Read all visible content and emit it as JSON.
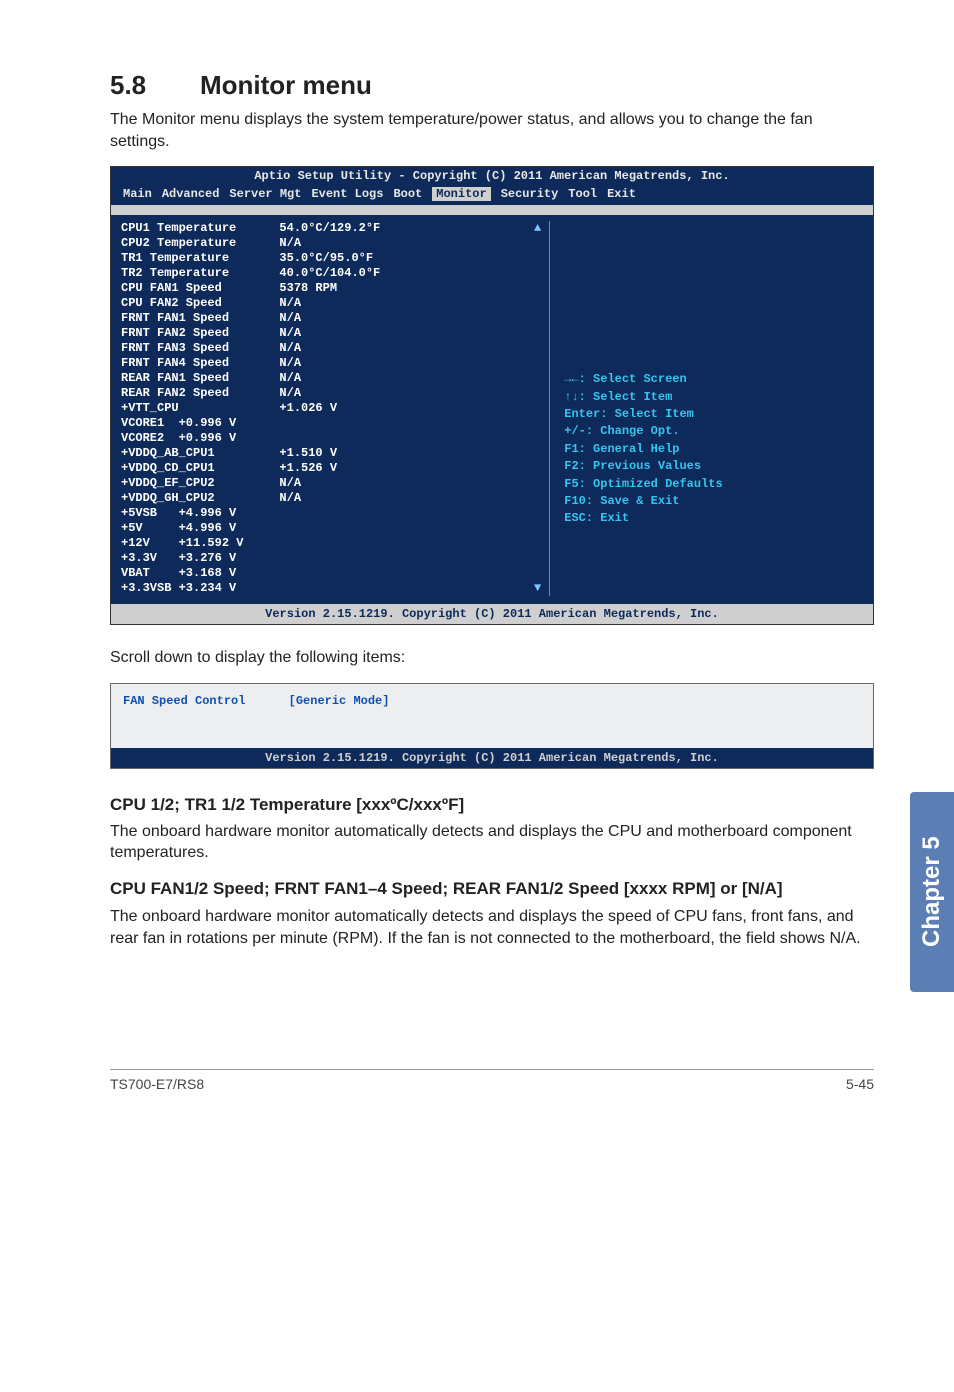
{
  "section": {
    "number": "5.8",
    "title": "Monitor menu"
  },
  "intro": "The Monitor menu displays the system temperature/power status, and allows you to change the fan settings.",
  "bios": {
    "title": "Aptio Setup Utility - Copyright (C) 2011 American Megatrends, Inc.",
    "menu": [
      "Main",
      "Advanced",
      "Server Mgt",
      "Event Logs",
      "Boot",
      "Monitor",
      "Security",
      "Tool",
      "Exit"
    ],
    "menu_selected": "Monitor",
    "left_rows": [
      [
        "CPU1 Temperature",
        "54.0°C/129.2°F"
      ],
      [
        "CPU2 Temperature",
        "N/A"
      ],
      [
        "TR1 Temperature",
        "35.0°C/95.0°F"
      ],
      [
        "TR2 Temperature",
        "40.0°C/104.0°F"
      ],
      [
        "CPU FAN1 Speed",
        "5378 RPM"
      ],
      [
        "CPU FAN2 Speed",
        "N/A"
      ],
      [
        "FRNT FAN1 Speed",
        "N/A"
      ],
      [
        "FRNT FAN2 Speed",
        "N/A"
      ],
      [
        "FRNT FAN3 Speed",
        "N/A"
      ],
      [
        "FRNT FAN4 Speed",
        "N/A"
      ],
      [
        "REAR FAN1 Speed",
        "N/A"
      ],
      [
        "REAR FAN2 Speed",
        "N/A"
      ],
      [
        "+VTT_CPU",
        "+1.026 V"
      ],
      [
        "VCORE1  +0.996 V",
        ""
      ],
      [
        "VCORE2  +0.996 V",
        ""
      ],
      [
        "+VDDQ_AB_CPU1",
        "+1.510 V"
      ],
      [
        "+VDDQ_CD_CPU1",
        "+1.526 V"
      ],
      [
        "+VDDQ_EF_CPU2",
        "N/A"
      ],
      [
        "+VDDQ_GH_CPU2",
        "N/A"
      ],
      [
        "+5VSB   +4.996 V",
        ""
      ],
      [
        "+5V     +4.996 V",
        ""
      ],
      [
        "+12V    +11.592 V",
        ""
      ],
      [
        "+3.3V   +3.276 V",
        ""
      ],
      [
        "VBAT    +3.168 V",
        ""
      ],
      [
        "+3.3VSB +3.234 V",
        ""
      ]
    ],
    "help": [
      "→←: Select Screen",
      "↑↓: Select Item",
      "Enter: Select Item",
      "+/-: Change Opt.",
      "F1: General Help",
      "F2: Previous Values",
      "F5: Optimized Defaults",
      "F10: Save & Exit",
      "ESC: Exit"
    ],
    "version": "Version 2.15.1219. Copyright (C) 2011 American Megatrends, Inc.",
    "colors": {
      "bg": "#0e2a5a",
      "sep": "#cfcfcf",
      "help_fg": "#36c5f0"
    }
  },
  "scroll_label": "Scroll down to display the following items:",
  "scroll_item": {
    "label": "FAN Speed Control",
    "value": "[Generic Mode]"
  },
  "sub1": {
    "heading": "CPU 1/2; TR1 1/2 Temperature [xxxºC/xxxºF]",
    "text": "The onboard hardware monitor automatically detects and displays the CPU and motherboard component temperatures."
  },
  "sub2": {
    "heading": "CPU FAN1/2 Speed; FRNT FAN1–4 Speed; REAR FAN1/2 Speed [xxxx RPM] or [N/A]",
    "text": "The onboard hardware monitor automatically detects and displays the speed of CPU fans, front fans, and rear fan in rotations per minute (RPM). If the fan is not connected to the motherboard, the field shows N/A."
  },
  "chapter_tab": "Chapter 5",
  "footer": {
    "left": "TS700-E7/RS8",
    "right": "5-45"
  }
}
